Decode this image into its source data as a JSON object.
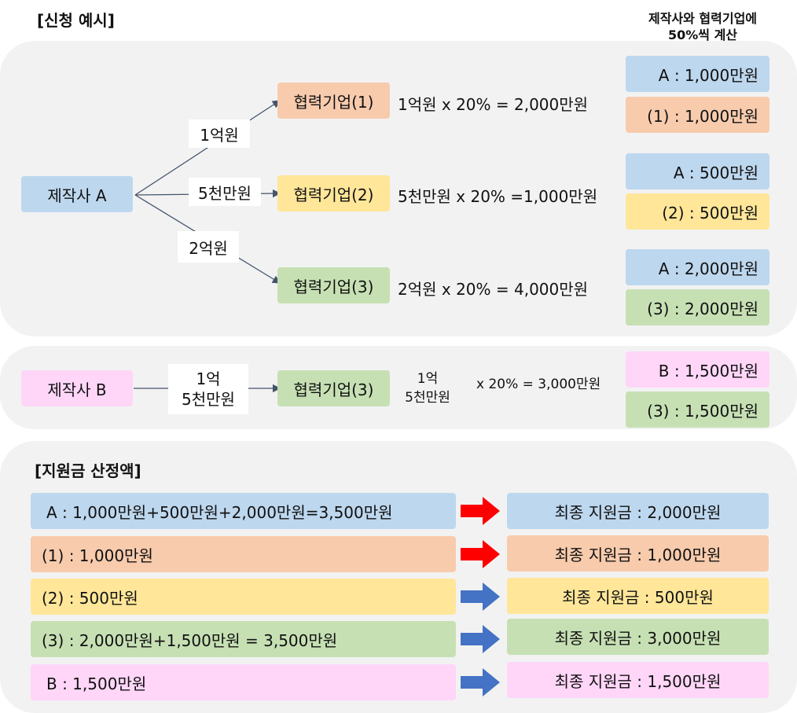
{
  "example": {
    "heading": "[신청 예시]",
    "note_line1": "제작사와 협력기업에",
    "note_line2": "50%씩 계산",
    "maker_a": "제작사 A",
    "maker_b": "제작사 B",
    "branches": [
      {
        "amount": "1억원",
        "partner": "협력기업(1)",
        "calc": "1억원 x 20% = 2,000만원",
        "share_a": "A : 1,000만원",
        "share_p": "(1) : 1,000만원"
      },
      {
        "amount": "5천만원",
        "partner": "협력기업(2)",
        "calc": "5천만원 x 20% =1,000만원",
        "share_a": "A : 500만원",
        "share_p": "(2) : 500만원"
      },
      {
        "amount": "2억원",
        "partner": "협력기업(3)",
        "calc": "2억원 x 20% = 4,000만원",
        "share_a": "A : 2,000만원",
        "share_p": "(3) : 2,000만원"
      }
    ],
    "b_branch": {
      "amount_line1": "1억",
      "amount_line2": "5천만원",
      "partner": "협력기업(3)",
      "calc_amount_line1": "1억",
      "calc_amount_line2": "5천만원",
      "calc_rest": "x 20% = 3,000만원",
      "share_b": "B : 1,500만원",
      "share_p": "(3) : 1,500만원"
    }
  },
  "subsidy": {
    "heading": "[지원금 산정액]",
    "rows": [
      {
        "calc": "A :  1,000만원+500만원+2,000만원=3,500만원",
        "arrow": "red",
        "final": "최종 지원금 : 2,000만원"
      },
      {
        "calc": "(1) : 1,000만원",
        "arrow": "red",
        "final": "최종 지원금 : 1,000만원"
      },
      {
        "calc": "(2) : 500만원",
        "arrow": "blue",
        "final": "최종 지원금 : 500만원"
      },
      {
        "calc": "(3) : 2,000만원+1,500만원  =  3,500만원",
        "arrow": "blue",
        "final": "최종 지원금 : 3,000만원"
      },
      {
        "calc": "B : 1,500만원",
        "arrow": "blue",
        "final": "최종 지원금 : 1,500만원"
      }
    ]
  },
  "colors": {
    "blue": "#bdd7ee",
    "orange": "#f8cbad",
    "yellow": "#ffe699",
    "green": "#c6e0b4",
    "pink": "#ffd6f8",
    "arrow_red": "#ff0000",
    "arrow_blue": "#4472c4"
  }
}
